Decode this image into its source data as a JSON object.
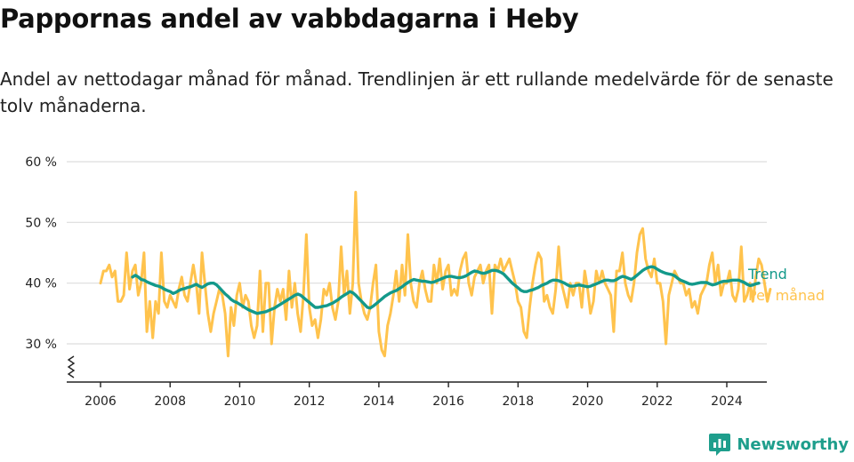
{
  "title": "Pappornas andel av vabbdagarna i Heby",
  "subtitle": "Andel av nettodagar månad för månad. Trendlinjen är ett rullande medelvärde för de senaste tolv månaderna.",
  "brand": {
    "name": "Newsworthy",
    "color": "#1e9e8c"
  },
  "chart_data": {
    "type": "line",
    "x_ticks": [
      "2006",
      "2008",
      "2010",
      "2012",
      "2014",
      "2016",
      "2018",
      "2020",
      "2022",
      "2024"
    ],
    "y_ticks": [
      "30 %",
      "40 %",
      "50 %",
      "60 %"
    ],
    "y_tick_values": [
      30,
      40,
      50,
      60
    ],
    "xlim": [
      2005.5,
      2025.2
    ],
    "ylim": [
      24,
      62
    ],
    "grid": true,
    "y_axis_break": true,
    "legend": "direct labels at right end of lines",
    "series": [
      {
        "name": "Per månad",
        "color": "#ffc34d",
        "start": 2006.0,
        "step": 0.0833333,
        "values": [
          40,
          42,
          42,
          43,
          41,
          42,
          37,
          37,
          38,
          45,
          39,
          42,
          43,
          38,
          40,
          45,
          32,
          37,
          31,
          37,
          35,
          45,
          37,
          36,
          38,
          37,
          36,
          39,
          41,
          38,
          37,
          40,
          43,
          40,
          35,
          45,
          40,
          35,
          32,
          35,
          37,
          39,
          38,
          35,
          28,
          36,
          33,
          38,
          40,
          36,
          38,
          37,
          33,
          31,
          33,
          42,
          32,
          40,
          40,
          30,
          36,
          39,
          37,
          39,
          34,
          42,
          36,
          40,
          35,
          32,
          38,
          48,
          36,
          33,
          34,
          31,
          34,
          39,
          38,
          40,
          36,
          34,
          37,
          46,
          38,
          42,
          35,
          40,
          55,
          40,
          37,
          35,
          34,
          36,
          40,
          43,
          32,
          29,
          28,
          33,
          35,
          38,
          42,
          37,
          43,
          38,
          48,
          40,
          37,
          36,
          40,
          42,
          39,
          37,
          37,
          43,
          40,
          44,
          39,
          42,
          43,
          38,
          39,
          38,
          42,
          44,
          45,
          40,
          38,
          41,
          42,
          43,
          40,
          42,
          43,
          35,
          43,
          42,
          44,
          42,
          43,
          44,
          42,
          40,
          37,
          36,
          32,
          31,
          36,
          40,
          43,
          45,
          44,
          37,
          38,
          36,
          35,
          39,
          46,
          40,
          38,
          36,
          40,
          38,
          40,
          40,
          36,
          42,
          39,
          35,
          37,
          42,
          40,
          42,
          40,
          39,
          38,
          32,
          42,
          42,
          45,
          40,
          38,
          37,
          40,
          45,
          48,
          49,
          44,
          42,
          41,
          44,
          40,
          40,
          37,
          30,
          38,
          40,
          42,
          41,
          40,
          40,
          38,
          39,
          36,
          37,
          35,
          38,
          39,
          40,
          43,
          45,
          40,
          43,
          38,
          40,
          40,
          42,
          38,
          37,
          39,
          46,
          37,
          38,
          40,
          37,
          41,
          44,
          43,
          40,
          37,
          39
        ]
      },
      {
        "name": "Trend",
        "color": "#13998a",
        "start": 2006.92,
        "step": 0.0833333,
        "values": [
          41,
          41.3,
          41,
          40.6,
          40.5,
          40.2,
          40,
          39.8,
          39.6,
          39.5,
          39.3,
          39,
          38.8,
          38.6,
          38.3,
          38.5,
          38.8,
          39,
          39.1,
          39.3,
          39.4,
          39.6,
          39.8,
          39.5,
          39.3,
          39.6,
          39.9,
          40,
          40,
          39.7,
          39.2,
          38.7,
          38.2,
          37.8,
          37.3,
          37,
          36.8,
          36.5,
          36.2,
          35.9,
          35.6,
          35.4,
          35.2,
          35,
          35.1,
          35.2,
          35.3,
          35.5,
          35.7,
          35.9,
          36.2,
          36.5,
          36.8,
          37.1,
          37.4,
          37.7,
          38,
          38.2,
          38,
          37.6,
          37.2,
          36.8,
          36.4,
          36,
          36,
          36.1,
          36.2,
          36.3,
          36.5,
          36.7,
          37,
          37.3,
          37.7,
          38,
          38.3,
          38.6,
          38.4,
          38,
          37.5,
          37,
          36.5,
          36,
          35.9,
          36.2,
          36.6,
          37,
          37.4,
          37.8,
          38.1,
          38.4,
          38.6,
          38.8,
          39.1,
          39.4,
          39.8,
          40.1,
          40.4,
          40.6,
          40.5,
          40.4,
          40.3,
          40.3,
          40.2,
          40.1,
          40.2,
          40.4,
          40.6,
          40.8,
          41,
          41.1,
          41.1,
          41,
          40.9,
          40.9,
          41,
          41.2,
          41.5,
          41.8,
          42,
          41.9,
          41.7,
          41.6,
          41.7,
          41.9,
          42.1,
          42.1,
          42,
          41.8,
          41.5,
          41,
          40.5,
          40,
          39.6,
          39.2,
          38.8,
          38.6,
          38.6,
          38.8,
          38.9,
          39.1,
          39.3,
          39.6,
          39.8,
          40,
          40.3,
          40.5,
          40.5,
          40.4,
          40.2,
          40,
          39.7,
          39.5,
          39.5,
          39.6,
          39.7,
          39.6,
          39.5,
          39.4,
          39.5,
          39.7,
          39.9,
          40.1,
          40.3,
          40.5,
          40.5,
          40.4,
          40.4,
          40.6,
          40.9,
          41.1,
          41,
          40.8,
          40.6,
          40.9,
          41.3,
          41.7,
          42.1,
          42.4,
          42.6,
          42.7,
          42.6,
          42.3,
          42,
          41.8,
          41.6,
          41.5,
          41.4,
          41.2,
          40.8,
          40.5,
          40.3,
          40.1,
          39.9,
          39.8,
          39.9,
          40,
          40.1,
          40.1,
          40.1,
          39.9,
          39.7,
          39.8,
          40,
          40.2,
          40.3,
          40.3,
          40.4,
          40.5,
          40.5,
          40.5,
          40.3,
          40.1,
          39.8,
          39.6,
          39.7,
          39.9,
          40
        ]
      }
    ]
  }
}
